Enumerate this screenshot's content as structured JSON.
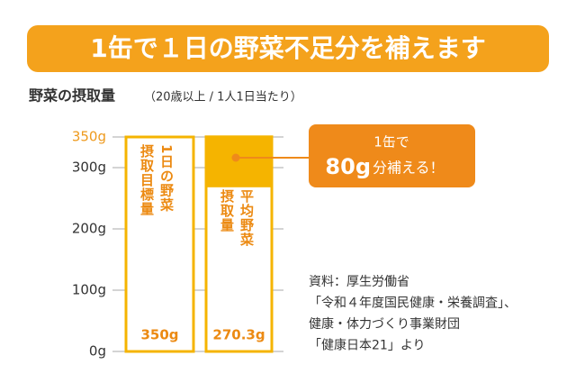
{
  "chart_data": {
    "type": "bar",
    "title": "1缶で１日の野菜不足分を補えます",
    "subtitle": "野菜の摂取量",
    "subtitle_note": "（20歳以上 / 1人1日当たり）",
    "categories": [
      "1日の野菜\n摂取目標量",
      "平均野菜\n摂取量"
    ],
    "series": [
      {
        "values": [
          350,
          270.3
        ],
        "value_labels": [
          "350g",
          "270.3g"
        ],
        "color": "#ffffff",
        "border": "#f5b400"
      },
      {
        "values": [
          null,
          80
        ],
        "value_labels": [
          null,
          "80g"
        ],
        "color": "#f5b400",
        "border": "#f5b400"
      }
    ],
    "ylim": [
      0,
      350
    ],
    "yticks": [
      {
        "value": 0,
        "label": "0g"
      },
      {
        "value": 100,
        "label": "100g"
      },
      {
        "value": 200,
        "label": "200g"
      },
      {
        "value": 300,
        "label": "300g"
      },
      {
        "value": 350,
        "label": "350g"
      }
    ],
    "grid": true,
    "callout": {
      "line1": "1缶で",
      "line2": "分補える！"
    },
    "source": [
      "資料：厚生労働省",
      "「令和４年度国民健康・栄養調査」、",
      "健康・体力づくり事業財団",
      "「健康日本21」より"
    ]
  }
}
